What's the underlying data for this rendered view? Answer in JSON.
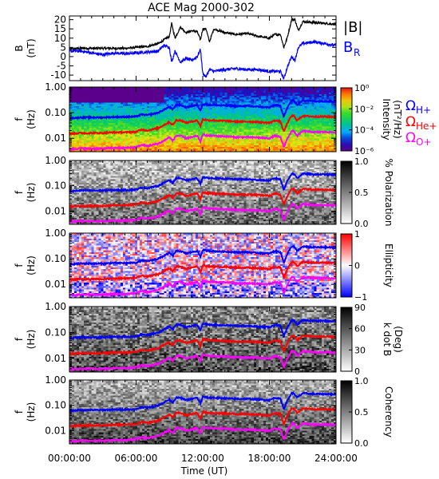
{
  "figure": {
    "title": "ACE Mag 2000-302",
    "xlabel": "Time (UT)",
    "xticks": [
      "00:00:00",
      "06:00:00",
      "12:00:00",
      "18:00:00",
      "24:00:00"
    ]
  },
  "colors": {
    "bmag": "#000000",
    "br": "#0000ff",
    "h_plus": "#0000ff",
    "he_plus": "#ff0000",
    "o_plus": "#ff00ff"
  },
  "chart_data": [
    {
      "type": "line",
      "title": "ACE Mag 2000-302",
      "ylabel": "B",
      "yunit": "(nT)",
      "ylim": [
        -13,
        22
      ],
      "yticks": [
        "20",
        "15",
        "10",
        "5",
        "0",
        "-5",
        "-10"
      ],
      "x_unit": "hours UT",
      "legend": [
        {
          "label": "|B|",
          "color": "#000000"
        },
        {
          "label": "B",
          "sub": "R",
          "color": "#0000ff"
        }
      ],
      "series": [
        {
          "name": "|B|",
          "color": "#000000",
          "x": [
            0,
            1,
            2,
            3,
            4,
            5,
            6,
            7,
            8,
            8.5,
            9,
            9.2,
            9.5,
            10,
            10.5,
            11,
            11.5,
            11.8,
            12,
            12.3,
            12.6,
            13,
            13.5,
            14,
            15,
            16,
            17,
            18,
            18.5,
            19,
            19.3,
            19.6,
            20,
            20.3,
            20.6,
            21,
            22,
            23,
            24
          ],
          "y": [
            4,
            4.5,
            4.5,
            4.5,
            4.5,
            4.5,
            5,
            5.5,
            7,
            9,
            11,
            18,
            10,
            16,
            13,
            14,
            13.5,
            9,
            15,
            15,
            8,
            15,
            14,
            13,
            12,
            12.5,
            11,
            10,
            12,
            12,
            5,
            10,
            20,
            20,
            14,
            19,
            18.5,
            18,
            17.5
          ]
        },
        {
          "name": "B_R",
          "color": "#0000ff",
          "x": [
            0,
            1,
            2,
            3,
            4,
            5,
            6,
            7,
            8,
            8.5,
            9,
            9.2,
            9.5,
            10,
            10.5,
            11,
            11.5,
            11.8,
            12,
            12.3,
            12.6,
            13,
            13.5,
            14,
            15,
            16,
            17,
            18,
            18.5,
            19,
            19.3,
            19.6,
            20,
            20.3,
            20.6,
            21,
            22,
            23,
            24
          ],
          "y": [
            3,
            3,
            2,
            1,
            2,
            1.5,
            2,
            2.5,
            3,
            6,
            5,
            -3,
            3,
            -3,
            -1,
            -2,
            0,
            4,
            -9,
            -11,
            -7,
            -8,
            -7.5,
            -7,
            -6.5,
            -7,
            -7,
            -8,
            -8,
            -8,
            -12,
            -6,
            0,
            -2,
            5,
            7,
            8,
            7,
            6
          ]
        }
      ]
    },
    {
      "type": "heatmap",
      "ylabel": "f",
      "yunit": "(Hz)",
      "ylim": [
        0.003,
        1.0
      ],
      "yscale": "log",
      "yticks": [
        "1.00",
        "0.10",
        "0.01"
      ],
      "colorbar": {
        "label": "Intensity",
        "unit": "(nT²/Hz)",
        "scale": "log",
        "range": [
          1e-06,
          1
        ],
        "ticks": [
          "10⁰",
          "10⁻²",
          "10⁻⁴",
          "10⁻⁶"
        ],
        "colormap": "rainbow"
      },
      "legend": [
        {
          "label": "Ω",
          "sub": "H+",
          "color": "#0000ff"
        },
        {
          "label": "Ω",
          "sub": "He+",
          "color": "#ff0000"
        },
        {
          "label": "Ω",
          "sub": "O+",
          "color": "#ff00ff"
        }
      ]
    },
    {
      "type": "heatmap",
      "ylabel": "f",
      "yunit": "(Hz)",
      "ylim": [
        0.003,
        1.0
      ],
      "yscale": "log",
      "yticks": [
        "1.00",
        "0.10",
        "0.01"
      ],
      "colorbar": {
        "label": "% Polarization",
        "range": [
          0,
          1
        ],
        "ticks": [
          "1.0",
          "0.5",
          "0.0"
        ],
        "colormap": "gray"
      }
    },
    {
      "type": "heatmap",
      "ylabel": "f",
      "yunit": "(Hz)",
      "ylim": [
        0.003,
        1.0
      ],
      "yscale": "log",
      "yticks": [
        "1.00",
        "0.10",
        "0.01"
      ],
      "colorbar": {
        "label": "Ellipticity",
        "range": [
          -1,
          1
        ],
        "ticks": [
          "1",
          "0",
          "−1"
        ],
        "colormap": "blue-white-red"
      }
    },
    {
      "type": "heatmap",
      "ylabel": "f",
      "yunit": "(Hz)",
      "ylim": [
        0.003,
        1.0
      ],
      "yscale": "log",
      "yticks": [
        "1.00",
        "0.10",
        "0.01"
      ],
      "colorbar": {
        "label": "k dot B",
        "unit": "(Deg)",
        "range": [
          0,
          90
        ],
        "ticks": [
          "90",
          "60",
          "30",
          "0"
        ],
        "colormap": "gray"
      }
    },
    {
      "type": "heatmap",
      "ylabel": "f",
      "yunit": "(Hz)",
      "ylim": [
        0.003,
        1.0
      ],
      "yscale": "log",
      "yticks": [
        "1.00",
        "0.10",
        "0.01"
      ],
      "colorbar": {
        "label": "Coherency",
        "range": [
          0,
          1
        ],
        "ticks": [
          "1.0",
          "0.5",
          "0.0"
        ],
        "colormap": "gray"
      }
    }
  ],
  "gyrofrequency_lines": {
    "x_unit": "hours UT",
    "y_unit": "Hz",
    "x": [
      0,
      1,
      2,
      3,
      4,
      5,
      6,
      6.5,
      7,
      8,
      8.5,
      9,
      9.3,
      9.6,
      10,
      10.5,
      11,
      11.5,
      11.8,
      12,
      12.5,
      13,
      13.5,
      14,
      15,
      16,
      17,
      18,
      18.5,
      19,
      19.3,
      19.6,
      20,
      20.2,
      20.5,
      21,
      22,
      23,
      24
    ],
    "h_plus": [
      0.06,
      0.065,
      0.065,
      0.065,
      0.068,
      0.068,
      0.07,
      0.085,
      0.08,
      0.1,
      0.13,
      0.17,
      0.13,
      0.2,
      0.2,
      0.16,
      0.18,
      0.2,
      0.12,
      0.22,
      0.2,
      0.2,
      0.19,
      0.19,
      0.18,
      0.18,
      0.17,
      0.16,
      0.2,
      0.18,
      0.07,
      0.15,
      0.3,
      0.3,
      0.2,
      0.3,
      0.28,
      0.28,
      0.27
    ],
    "he_plus": [
      0.015,
      0.016,
      0.016,
      0.016,
      0.017,
      0.017,
      0.018,
      0.022,
      0.02,
      0.025,
      0.033,
      0.043,
      0.033,
      0.05,
      0.05,
      0.04,
      0.045,
      0.05,
      0.03,
      0.055,
      0.05,
      0.05,
      0.048,
      0.048,
      0.045,
      0.045,
      0.043,
      0.04,
      0.05,
      0.045,
      0.018,
      0.038,
      0.075,
      0.075,
      0.05,
      0.075,
      0.07,
      0.07,
      0.068
    ],
    "o_plus": [
      0.0038,
      0.004,
      0.004,
      0.004,
      0.0042,
      0.0042,
      0.0045,
      0.0055,
      0.005,
      0.0062,
      0.008,
      0.011,
      0.008,
      0.0125,
      0.0125,
      0.01,
      0.011,
      0.0125,
      0.0075,
      0.014,
      0.0125,
      0.0125,
      0.012,
      0.012,
      0.011,
      0.011,
      0.0107,
      0.01,
      0.0125,
      0.011,
      0.0045,
      0.0095,
      0.019,
      0.019,
      0.0125,
      0.019,
      0.0175,
      0.0175,
      0.017
    ]
  }
}
